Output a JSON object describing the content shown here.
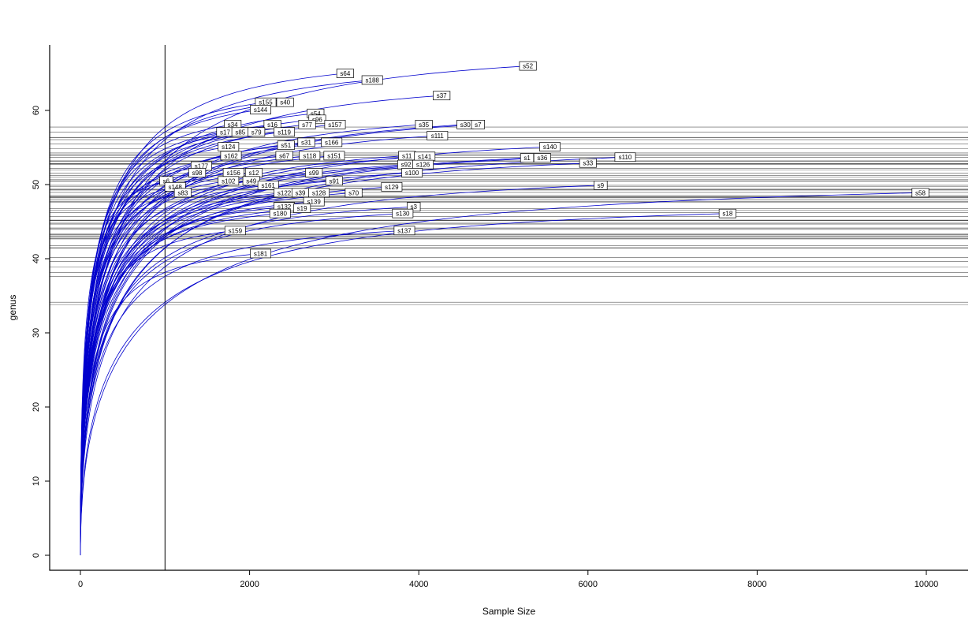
{
  "chart_data": {
    "type": "line",
    "title": "",
    "xlabel": "Sample Size",
    "ylabel": "genus",
    "xlim": [
      -360,
      10500
    ],
    "ylim": [
      -2,
      68.8
    ],
    "x_ticks": [
      0,
      2000,
      4000,
      6000,
      8000,
      10000
    ],
    "y_ticks": [
      0,
      10,
      20,
      30,
      40,
      50,
      60
    ],
    "grid": false,
    "legend": "none",
    "curve_color": "#0000CD",
    "axis_color": "#000000",
    "hline_color": "#3a3a3a",
    "reference_sample_size": 1000,
    "vline_x": 1000,
    "hlines_at_reference": true,
    "series": [
      {
        "label": "s52",
        "sample_size": 5290,
        "genus": 66
      },
      {
        "label": "s64",
        "sample_size": 3130,
        "genus": 65
      },
      {
        "label": "s188",
        "sample_size": 3450,
        "genus": 64.1
      },
      {
        "label": "s37",
        "sample_size": 4270,
        "genus": 62
      },
      {
        "label": "s155",
        "sample_size": 2190,
        "genus": 61.1
      },
      {
        "label": "s40",
        "sample_size": 2420,
        "genus": 61.1
      },
      {
        "label": "s144",
        "sample_size": 2130,
        "genus": 60.1
      },
      {
        "label": "s54",
        "sample_size": 2780,
        "genus": 59.6
      },
      {
        "label": "s96",
        "sample_size": 2800,
        "genus": 58.8
      },
      {
        "label": "s34",
        "sample_size": 1800,
        "genus": 58.1
      },
      {
        "label": "s16",
        "sample_size": 2270,
        "genus": 58.1
      },
      {
        "label": "s77",
        "sample_size": 2680,
        "genus": 58.1
      },
      {
        "label": "s157",
        "sample_size": 3010,
        "genus": 58.1
      },
      {
        "label": "s35",
        "sample_size": 4060,
        "genus": 58.1
      },
      {
        "label": "s30",
        "sample_size": 4550,
        "genus": 58.1
      },
      {
        "label": "s7",
        "sample_size": 4700,
        "genus": 58.1
      },
      {
        "label": "s17",
        "sample_size": 1710,
        "genus": 57.1
      },
      {
        "label": "s85",
        "sample_size": 1890,
        "genus": 57.1
      },
      {
        "label": "s79",
        "sample_size": 2080,
        "genus": 57.1
      },
      {
        "label": "s119",
        "sample_size": 2410,
        "genus": 57.1
      },
      {
        "label": "s111",
        "sample_size": 4220,
        "genus": 56.6
      },
      {
        "label": "s31",
        "sample_size": 2670,
        "genus": 55.7
      },
      {
        "label": "s166",
        "sample_size": 2970,
        "genus": 55.7
      },
      {
        "label": "s124",
        "sample_size": 1750,
        "genus": 55.1
      },
      {
        "label": "s51",
        "sample_size": 2430,
        "genus": 55.3
      },
      {
        "label": "s140",
        "sample_size": 5550,
        "genus": 55.1
      },
      {
        "label": "s162",
        "sample_size": 1780,
        "genus": 53.9
      },
      {
        "label": "s67",
        "sample_size": 2410,
        "genus": 53.9
      },
      {
        "label": "s118",
        "sample_size": 2710,
        "genus": 53.9
      },
      {
        "label": "s151",
        "sample_size": 3000,
        "genus": 53.9
      },
      {
        "label": "s11",
        "sample_size": 3860,
        "genus": 53.9
      },
      {
        "label": "s141",
        "sample_size": 4070,
        "genus": 53.8
      },
      {
        "label": "s1",
        "sample_size": 5280,
        "genus": 53.6
      },
      {
        "label": "s36",
        "sample_size": 5460,
        "genus": 53.6
      },
      {
        "label": "s110",
        "sample_size": 6440,
        "genus": 53.7
      },
      {
        "label": "s33",
        "sample_size": 6000,
        "genus": 52.9
      },
      {
        "label": "s177",
        "sample_size": 1430,
        "genus": 52.5
      },
      {
        "label": "s92",
        "sample_size": 3850,
        "genus": 52.7
      },
      {
        "label": "s126",
        "sample_size": 4050,
        "genus": 52.7
      },
      {
        "label": "s98",
        "sample_size": 1380,
        "genus": 51.6
      },
      {
        "label": "s156",
        "sample_size": 1810,
        "genus": 51.6
      },
      {
        "label": "s12",
        "sample_size": 2050,
        "genus": 51.6
      },
      {
        "label": "s99",
        "sample_size": 2760,
        "genus": 51.6
      },
      {
        "label": "s100",
        "sample_size": 3920,
        "genus": 51.6
      },
      {
        "label": "s6",
        "sample_size": 1015,
        "genus": 50.5
      },
      {
        "label": "s102",
        "sample_size": 1750,
        "genus": 50.5
      },
      {
        "label": "s49",
        "sample_size": 2020,
        "genus": 50.5
      },
      {
        "label": "s91",
        "sample_size": 3000,
        "genus": 50.5
      },
      {
        "label": "s148",
        "sample_size": 1120,
        "genus": 49.7
      },
      {
        "label": "s161",
        "sample_size": 2220,
        "genus": 49.9
      },
      {
        "label": "s129",
        "sample_size": 3680,
        "genus": 49.7
      },
      {
        "label": "s9",
        "sample_size": 6150,
        "genus": 49.9
      },
      {
        "label": "s83",
        "sample_size": 1210,
        "genus": 48.9
      },
      {
        "label": "s122",
        "sample_size": 2410,
        "genus": 48.9
      },
      {
        "label": "s39",
        "sample_size": 2600,
        "genus": 48.9
      },
      {
        "label": "s128",
        "sample_size": 2820,
        "genus": 48.9
      },
      {
        "label": "s70",
        "sample_size": 3230,
        "genus": 48.9
      },
      {
        "label": "s58",
        "sample_size": 9930,
        "genus": 48.9
      },
      {
        "label": "s139",
        "sample_size": 2760,
        "genus": 47.7
      },
      {
        "label": "s132",
        "sample_size": 2410,
        "genus": 47
      },
      {
        "label": "s19",
        "sample_size": 2620,
        "genus": 46.8
      },
      {
        "label": "s3",
        "sample_size": 3940,
        "genus": 47
      },
      {
        "label": "s180",
        "sample_size": 2360,
        "genus": 46.1
      },
      {
        "label": "s130",
        "sample_size": 3810,
        "genus": 46.1
      },
      {
        "label": "s18",
        "sample_size": 7650,
        "genus": 46.1
      },
      {
        "label": "s159",
        "sample_size": 1830,
        "genus": 43.8
      },
      {
        "label": "s137",
        "sample_size": 3830,
        "genus": 43.8
      },
      {
        "label": "s181",
        "sample_size": 2130,
        "genus": 40.7
      }
    ]
  }
}
